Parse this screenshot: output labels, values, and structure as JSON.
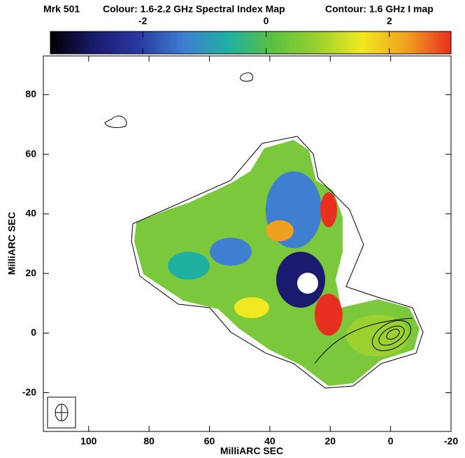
{
  "chart_data": {
    "type": "image",
    "title": "Mrk 501",
    "subtitle": "Colour: 1.6-2.2 GHz Spectral Index Map",
    "annotation": "Contour: 1.6 GHz I map",
    "xlabel": "MilliARC SEC",
    "ylabel": "MilliARC SEC",
    "xlim": [
      115,
      -20
    ],
    "ylim": [
      -33,
      93
    ],
    "xticks": [
      100,
      80,
      60,
      40,
      20,
      0,
      -20
    ],
    "yticks": [
      80,
      60,
      40,
      20,
      0,
      -20
    ],
    "clim": [
      -3.5,
      3
    ],
    "cticks": [
      -2,
      0,
      2
    ],
    "colormap": [
      "#000000",
      "#1a1a6e",
      "#2a3aa0",
      "#3f7fd0",
      "#20b0a0",
      "#5cc040",
      "#9ad030",
      "#f0e820",
      "#f0a020",
      "#e83020"
    ]
  }
}
